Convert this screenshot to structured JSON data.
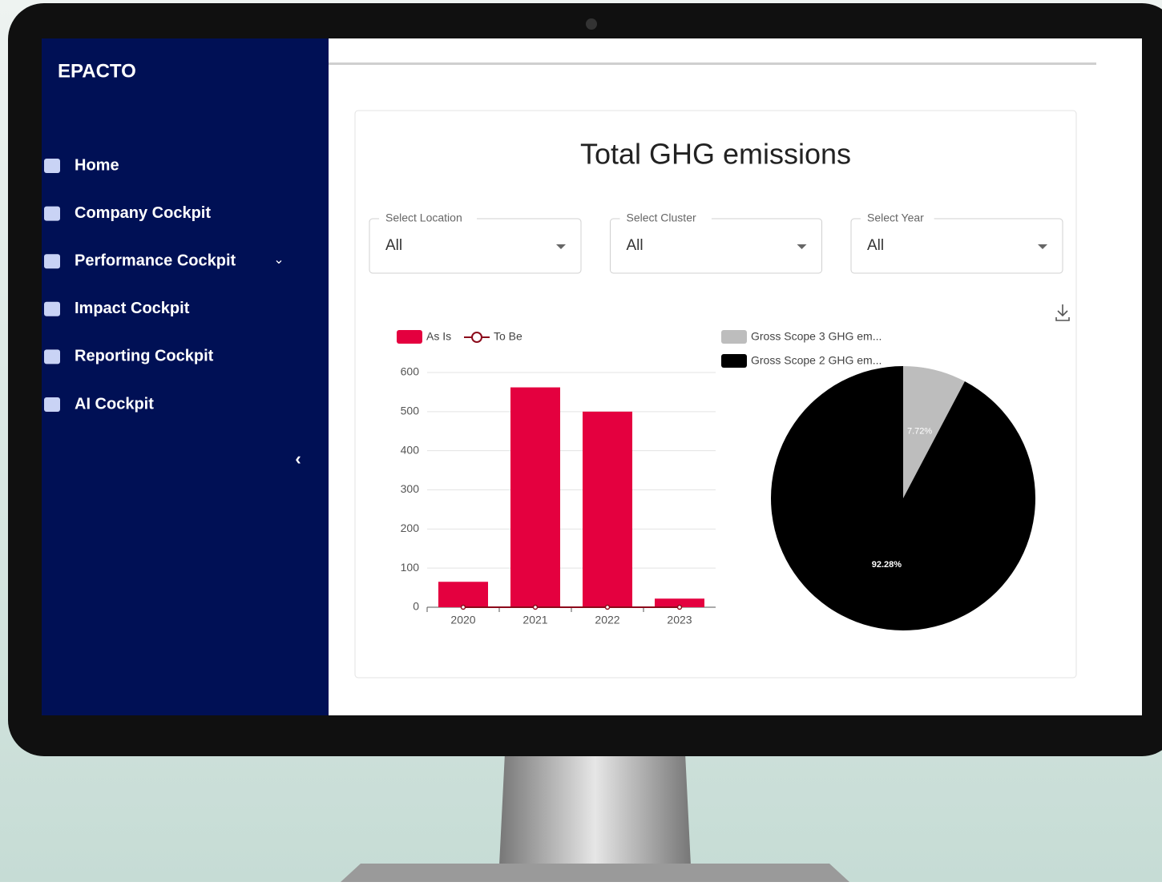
{
  "logo": "EPACTO",
  "nav": [
    "Home",
    "Company Cockpit",
    "Performance Cockpit",
    "Impact Cockpit",
    "Reporting Cockpit",
    "AI Cockpit"
  ],
  "card_title": "Total GHG emissions",
  "filters": [
    {
      "label": "Select Location",
      "value": "All"
    },
    {
      "label": "Select Cluster",
      "value": "All"
    },
    {
      "label": "Select Year",
      "value": "All"
    }
  ],
  "chart_data": [
    {
      "type": "bar",
      "categories": [
        "2020",
        "2021",
        "2022",
        "2023"
      ],
      "series": [
        {
          "name": "As Is",
          "color": "#e4003f",
          "type": "bar",
          "values": [
            65,
            562,
            500,
            22
          ]
        },
        {
          "name": "To Be",
          "color": "#8b0a1a",
          "type": "line",
          "values": [
            0,
            0,
            0,
            0
          ]
        }
      ],
      "ylim": [
        0,
        600
      ],
      "yticks": [
        0,
        100,
        200,
        300,
        400,
        500,
        600
      ],
      "grid": true,
      "legend": "top-left"
    },
    {
      "type": "pie",
      "categories": [
        "Gross Scope 3 GHG em...",
        "Gross Scope 2 GHG em..."
      ],
      "values": [
        7.72,
        92.28
      ],
      "value_labels": [
        "7.72%",
        "92.28%"
      ],
      "colors": [
        "#bdbdbd",
        "#000000"
      ],
      "legend": "top-left"
    }
  ]
}
